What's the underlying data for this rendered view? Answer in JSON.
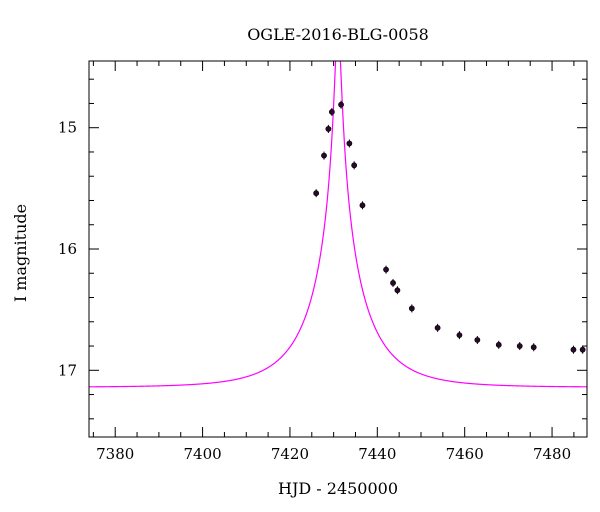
{
  "chart_data": {
    "type": "scatter",
    "title": "OGLE-2016-BLG-0058",
    "xlabel": "HJD - 2450000",
    "ylabel": "I magnitude",
    "xlim": [
      7374,
      7488
    ],
    "ylim": [
      17.55,
      14.45
    ],
    "y_inverted": true,
    "x_major_ticks": [
      7380,
      7400,
      7420,
      7440,
      7460,
      7480
    ],
    "x_minor_step": 5,
    "y_major_ticks": [
      15,
      16,
      17
    ],
    "y_minor_step": 0.2,
    "grid": false,
    "legend": "none",
    "colors": {
      "model": "#ff00ff",
      "points": "#2a0a2a"
    },
    "series": [
      {
        "type": "scatter",
        "x": [
          7426.0,
          7427.8,
          7428.8,
          7429.6,
          7431.7,
          7433.6,
          7434.7,
          7436.6,
          7442.0,
          7443.6,
          7444.6,
          7447.9,
          7453.8,
          7458.8,
          7462.9,
          7467.8,
          7472.6,
          7475.8,
          7484.9,
          7487.0
        ],
        "y": [
          15.54,
          15.23,
          15.01,
          14.87,
          14.81,
          15.13,
          15.31,
          15.64,
          16.17,
          16.28,
          16.34,
          16.49,
          16.65,
          16.71,
          16.75,
          16.79,
          16.8,
          16.81,
          16.83,
          16.83
        ]
      },
      {
        "type": "line",
        "model": "point-lens microlensing fit",
        "t0": 7431.0,
        "u0": 0.048,
        "tE": 13.0,
        "I_base": 17.14,
        "x_range": [
          7374,
          7488
        ]
      }
    ]
  }
}
